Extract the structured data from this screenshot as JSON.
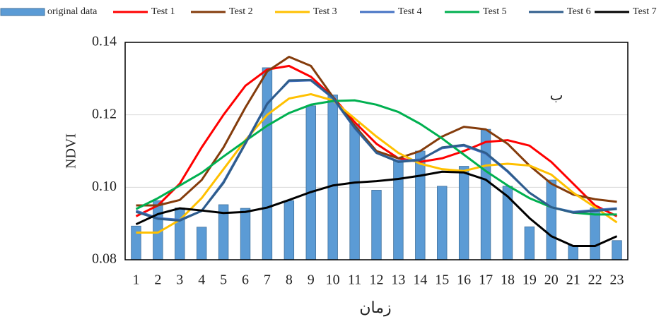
{
  "chart_data": {
    "type": "bar",
    "y_label": "NDVI",
    "x_label": "زمان",
    "annotation": "ب",
    "categories": [
      1,
      2,
      3,
      4,
      5,
      6,
      7,
      8,
      9,
      10,
      11,
      12,
      13,
      14,
      15,
      16,
      17,
      18,
      19,
      20,
      21,
      22,
      23
    ],
    "ylim": [
      0.08,
      0.14
    ],
    "yticks": [
      0.08,
      {
        "value": 0.1,
        "label": "0.10"
      },
      0.12,
      0.14
    ],
    "grid": true,
    "legend": "top",
    "series": [
      {
        "name": "original data",
        "type": "bar",
        "color": "#5b9bd5",
        "values": [
          0.0893,
          0.0963,
          0.0943,
          0.089,
          0.0952,
          0.0942,
          0.133,
          0.0963,
          0.1225,
          0.1255,
          0.1175,
          0.0992,
          0.1075,
          0.11,
          0.1003,
          0.1058,
          0.116,
          0.1003,
          0.0891,
          0.102,
          0.084,
          0.0943,
          0.0853
        ]
      },
      {
        "name": "Test 1",
        "type": "line",
        "color": "#ff0000",
        "values": [
          0.092,
          0.095,
          0.101,
          0.111,
          0.12,
          0.128,
          0.1325,
          0.1335,
          0.1305,
          0.125,
          0.118,
          0.112,
          0.108,
          0.107,
          0.108,
          0.11,
          0.1125,
          0.113,
          0.1115,
          0.107,
          0.101,
          0.095,
          0.092
        ]
      },
      {
        "name": "Test 2",
        "type": "line",
        "color": "#843c0c",
        "values": [
          0.095,
          0.095,
          0.0965,
          0.102,
          0.111,
          0.122,
          0.132,
          0.136,
          0.1335,
          0.125,
          0.117,
          0.11,
          0.108,
          0.11,
          0.114,
          0.1167,
          0.116,
          0.112,
          0.106,
          0.101,
          0.098,
          0.0967,
          0.096
        ]
      },
      {
        "name": "Test 3",
        "type": "line",
        "color": "#ffc000",
        "values": [
          0.0875,
          0.0875,
          0.091,
          0.097,
          0.105,
          0.113,
          0.12,
          0.1245,
          0.1257,
          0.124,
          0.119,
          0.114,
          0.1095,
          0.1065,
          0.105,
          0.1045,
          0.106,
          0.1065,
          0.106,
          0.1035,
          0.0985,
          0.0945,
          0.0903
        ]
      },
      {
        "name": "Test 4",
        "type": "line",
        "color": "#4472c4",
        "values": [
          0.0935,
          0.0915,
          0.091,
          0.0935,
          0.1015,
          0.1122,
          0.1232,
          0.1293,
          0.1295,
          0.1246,
          0.1163,
          0.1095,
          0.1072,
          0.1077,
          0.1108,
          0.1115,
          0.1093,
          0.1043,
          0.0985,
          0.0945,
          0.0932,
          0.0937,
          0.0942
        ]
      },
      {
        "name": "Test 5",
        "type": "line",
        "color": "#00b050",
        "values": [
          0.094,
          0.097,
          0.1005,
          0.104,
          0.1085,
          0.1128,
          0.117,
          0.1205,
          0.1228,
          0.1238,
          0.124,
          0.1228,
          0.1208,
          0.1175,
          0.1135,
          0.109,
          0.1045,
          0.1005,
          0.097,
          0.0945,
          0.093,
          0.0925,
          0.0925
        ]
      },
      {
        "name": "Test 6",
        "type": "line",
        "color": "#2f5d8c",
        "values": [
          0.0932,
          0.0913,
          0.0908,
          0.0935,
          0.1012,
          0.112,
          0.123,
          0.1295,
          0.1296,
          0.1248,
          0.1165,
          0.1095,
          0.107,
          0.1075,
          0.111,
          0.1117,
          0.1095,
          0.1045,
          0.0985,
          0.0945,
          0.093,
          0.0935,
          0.094
        ]
      },
      {
        "name": "Test 7",
        "type": "line",
        "color": "#000000",
        "values": [
          0.0898,
          0.0926,
          0.0942,
          0.0936,
          0.0929,
          0.0932,
          0.0944,
          0.0965,
          0.0987,
          0.1005,
          0.1013,
          0.1017,
          0.1023,
          0.1032,
          0.1043,
          0.1041,
          0.1021,
          0.0975,
          0.0915,
          0.0865,
          0.0838,
          0.0838,
          0.0865
        ]
      }
    ]
  }
}
